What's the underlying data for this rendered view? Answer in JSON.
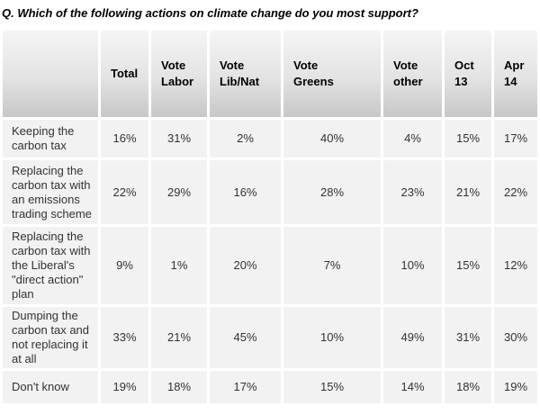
{
  "title": "Q. Which of the following actions on climate change do you most support?",
  "table": {
    "columns": [
      "",
      "Total",
      "Vote\nLabor",
      "Vote\nLib/Nat",
      "Vote\nGreens",
      "Vote\nother",
      "Oct\n13",
      "Apr\n14"
    ],
    "rows": [
      {
        "label": "Keeping the carbon tax",
        "values": [
          "16%",
          "31%",
          "2%",
          "40%",
          "4%",
          "15%",
          "17%"
        ]
      },
      {
        "label": "Replacing the carbon tax with an emissions trading scheme",
        "values": [
          "22%",
          "29%",
          "16%",
          "28%",
          "23%",
          "21%",
          "22%"
        ]
      },
      {
        "label": "Replacing the carbon tax with the Liberal's \"direct action\" plan",
        "values": [
          "9%",
          "1%",
          "20%",
          "7%",
          "10%",
          "15%",
          "12%"
        ]
      },
      {
        "label": "Dumping the carbon tax and not replacing it at all",
        "values": [
          "33%",
          "21%",
          "45%",
          "10%",
          "49%",
          "31%",
          "30%"
        ]
      },
      {
        "label": "Don't know",
        "values": [
          "19%",
          "18%",
          "17%",
          "15%",
          "14%",
          "18%",
          "19%"
        ]
      }
    ]
  },
  "chart_data": {
    "type": "table",
    "title": "Q. Which of the following actions on climate change do you most support?",
    "columns": [
      "Total",
      "Vote Labor",
      "Vote Lib/Nat",
      "Vote Greens",
      "Vote other",
      "Oct 13",
      "Apr 14"
    ],
    "row_labels": [
      "Keeping the carbon tax",
      "Replacing the carbon tax with an emissions trading scheme",
      "Replacing the carbon tax with the Liberal's \"direct action\" plan",
      "Dumping the carbon tax and not replacing it at all",
      "Don't know"
    ],
    "values_percent": [
      [
        16,
        31,
        2,
        40,
        4,
        15,
        17
      ],
      [
        22,
        29,
        16,
        28,
        23,
        21,
        22
      ],
      [
        9,
        1,
        20,
        7,
        10,
        15,
        12
      ],
      [
        33,
        21,
        45,
        10,
        49,
        31,
        30
      ],
      [
        19,
        18,
        17,
        15,
        14,
        18,
        19
      ]
    ],
    "unit": "%"
  },
  "colors": {
    "hdr_top": "#f5f5f5",
    "hdr_bottom": "#c7c7c7",
    "cell_bg": "#f2f2f2",
    "gap": "#ffffff",
    "text": "#333333",
    "hdr_text": "#000000",
    "title_text": "#000000"
  }
}
